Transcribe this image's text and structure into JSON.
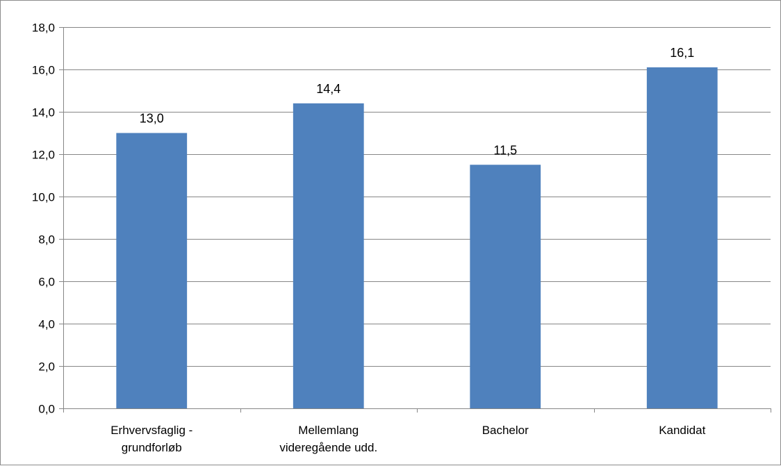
{
  "chart_data": {
    "type": "bar",
    "categories": [
      [
        "Erhvervsfaglig -",
        "grundforløb"
      ],
      [
        "Mellemlang",
        "videregående udd."
      ],
      [
        "Bachelor"
      ],
      [
        "Kandidat"
      ]
    ],
    "values": [
      13.0,
      14.4,
      11.5,
      16.1
    ],
    "data_labels": [
      "13,0",
      "14,4",
      "11,5",
      "16,1"
    ],
    "y_ticks": [
      0,
      2,
      4,
      6,
      8,
      10,
      12,
      14,
      16,
      18
    ],
    "y_tick_labels": [
      "0,0",
      "2,0",
      "4,0",
      "6,0",
      "8,0",
      "10,0",
      "12,0",
      "14,0",
      "16,0",
      "18,0"
    ],
    "ylim": [
      0,
      18
    ],
    "title": "",
    "xlabel": "",
    "ylabel": "",
    "grid": true,
    "legend": "none",
    "colors": {
      "bar": "#4f81bd",
      "grid": "#868686",
      "axis": "#868686",
      "frame": "#8c8c8c"
    }
  }
}
